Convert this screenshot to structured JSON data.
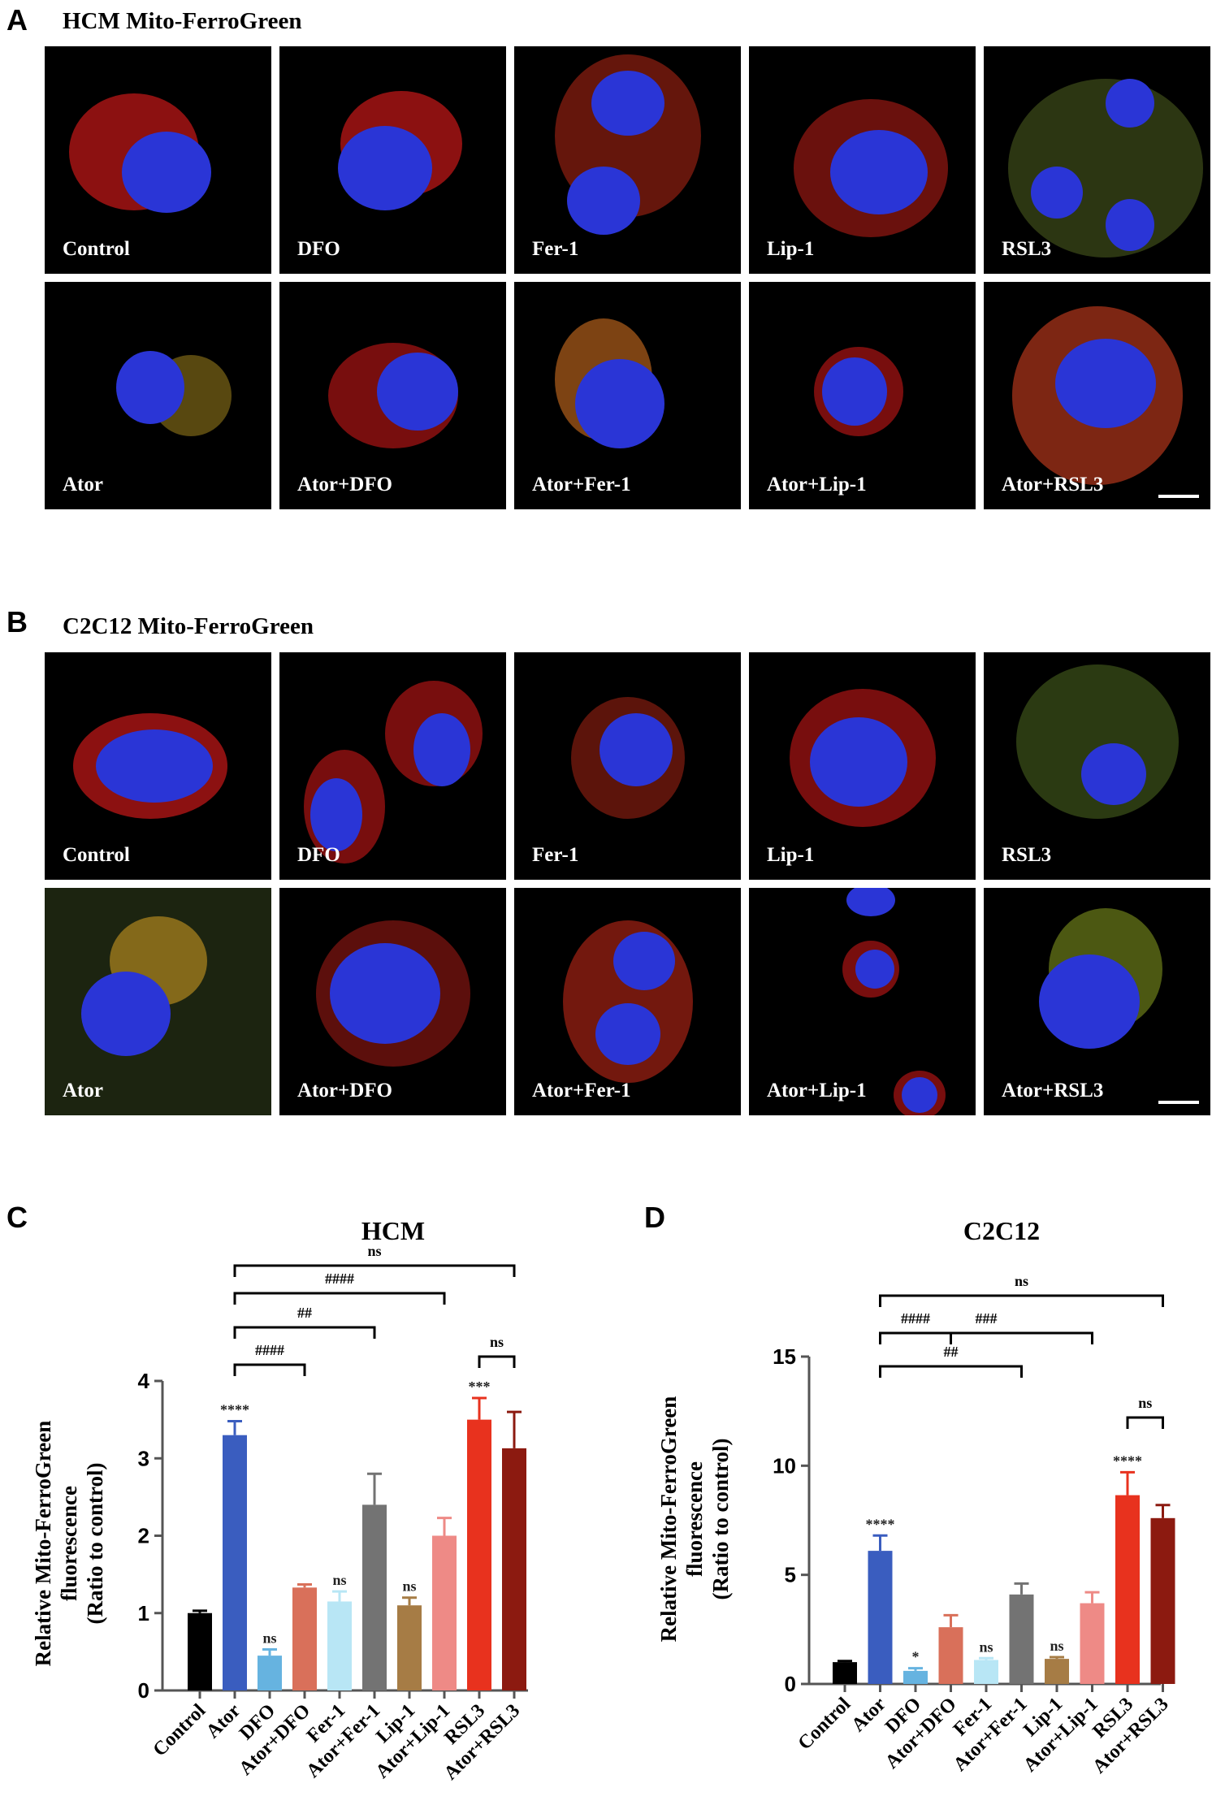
{
  "panels": {
    "A": {
      "letter": "A",
      "title": "HCM Mito-FerroGreen"
    },
    "B": {
      "letter": "B",
      "title": "C2C12 Mito-FerroGreen"
    },
    "C": {
      "letter": "C"
    },
    "D": {
      "letter": "D"
    }
  },
  "micrographs": {
    "row1_labels": [
      "Control",
      "DFO",
      "Fer-1",
      "Lip-1",
      "RSL3"
    ],
    "row2_labels": [
      "Ator",
      "Ator+DFO",
      "Ator+Fer-1",
      "Ator+Lip-1",
      "Ator+RSL3"
    ]
  },
  "colors": {
    "Control": "#000000",
    "Ator": "#3a5dbf",
    "DFO": "#66b3e0",
    "Ator+DFO": "#d9705a",
    "Fer-1": "#b8e6f5",
    "Ator+Fer-1": "#737373",
    "Lip-1": "#a67c45",
    "Ator+Lip-1": "#ee8a86",
    "RSL3": "#e8321e",
    "Ator+RSL3": "#8c1a10"
  },
  "chart_data": [
    {
      "type": "bar",
      "title": "HCM",
      "ylabel": [
        "Relative Mito-FerroGreen",
        "fluorescence",
        "(Ratio to control)"
      ],
      "categories": [
        "Control",
        "Ator",
        "DFO",
        "Ator+DFO",
        "Fer-1",
        "Ator+Fer-1",
        "Lip-1",
        "Ator+Lip-1",
        "RSL3",
        "Ator+RSL3"
      ],
      "values": [
        1.0,
        3.3,
        0.45,
        1.33,
        1.15,
        2.4,
        1.1,
        2.0,
        3.5,
        3.13
      ],
      "errors": [
        0.03,
        0.18,
        0.08,
        0.04,
        0.13,
        0.4,
        0.1,
        0.23,
        0.28,
        0.47
      ],
      "bar_labels": [
        "",
        "****",
        "ns",
        "",
        "ns",
        "",
        "ns",
        "",
        "***",
        ""
      ],
      "ylim": [
        0,
        4
      ],
      "yticks": [
        "0",
        "1",
        "2",
        "3",
        "4"
      ],
      "brackets": [
        {
          "from": 8,
          "to": 9,
          "label": "ns"
        },
        {
          "from": 1,
          "to": 3,
          "label": "####"
        },
        {
          "from": 1,
          "to": 5,
          "label": "##"
        },
        {
          "from": 1,
          "to": 7,
          "label": "####"
        },
        {
          "from": 1,
          "to": 9,
          "label": "ns"
        }
      ]
    },
    {
      "type": "bar",
      "title": "C2C12",
      "ylabel": [
        "Relative Mito-FerroGreen",
        "fluorescence",
        "(Ratio to control)"
      ],
      "categories": [
        "Control",
        "Ator",
        "DFO",
        "Ator+DFO",
        "Fer-1",
        "Ator+Fer-1",
        "Lip-1",
        "Ator+Lip-1",
        "RSL3",
        "Ator+RSL3"
      ],
      "values": [
        1.0,
        6.1,
        0.6,
        2.6,
        1.1,
        4.1,
        1.15,
        3.7,
        8.65,
        7.6
      ],
      "errors": [
        0.05,
        0.7,
        0.12,
        0.55,
        0.08,
        0.5,
        0.08,
        0.5,
        1.05,
        0.6
      ],
      "bar_labels": [
        "",
        "****",
        "*",
        "",
        "ns",
        "",
        "ns",
        "",
        "****",
        ""
      ],
      "ylim": [
        0,
        15
      ],
      "yticks": [
        "0",
        "5",
        "10",
        "15"
      ],
      "brackets": [
        {
          "from": 8,
          "to": 9,
          "label": "ns"
        },
        {
          "from": 1,
          "to": 3,
          "label": "####"
        },
        {
          "from": 1,
          "to": 5,
          "label": "##"
        },
        {
          "from": 1,
          "to": 7,
          "label": "###"
        },
        {
          "from": 1,
          "to": 9,
          "label": "ns"
        }
      ]
    }
  ]
}
